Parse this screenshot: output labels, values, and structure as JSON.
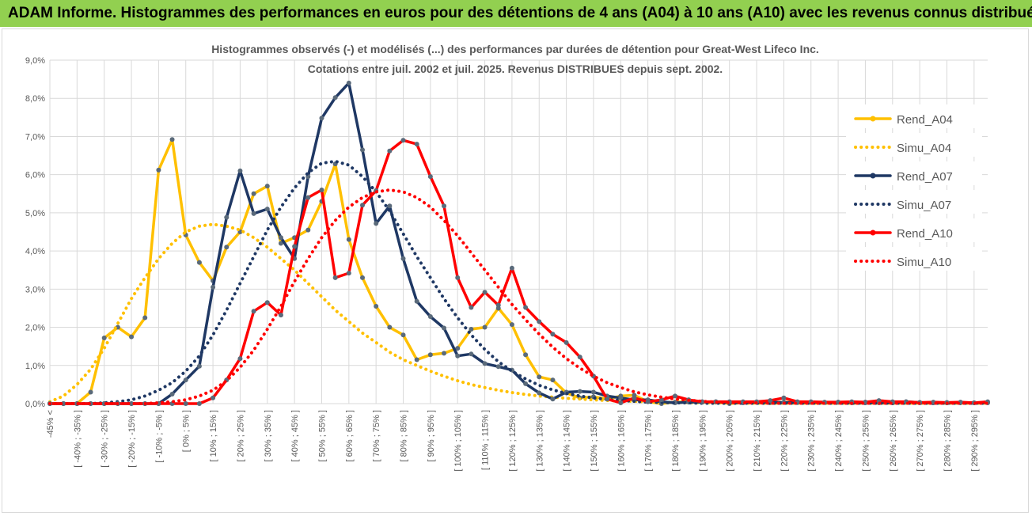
{
  "banner": {
    "title": "ADAM Informe. Histogrammes des performances en euros pour des détentions de 4 ans (A04) à 10 ans (A10) avec les revenus connus distribués"
  },
  "colors": {
    "banner": "#92d050",
    "A04": "#ffc000",
    "A07": "#1f3864",
    "A10": "#ff0000",
    "grid": "#d9d9d9",
    "markers": "#5a6a7a"
  },
  "chart_data": {
    "type": "line",
    "title": "Histogrammes observés (-) et modélisés (...) des performances par durées de détention pour Great-West Lifeco Inc.",
    "subtitle": "Cotations entre juil. 2002 et juil. 2025. Revenus DISTRIBUES depuis sept. 2002.",
    "xlabel": "",
    "ylabel": "",
    "ylim": [
      0,
      9
    ],
    "yticks": [
      "0,0%",
      "1,0%",
      "2,0%",
      "3,0%",
      "4,0%",
      "5,0%",
      "6,0%",
      "7,0%",
      "8,0%",
      "9,0%"
    ],
    "grid": true,
    "legend_position": "right",
    "x_tick_labels": [
      "-45% <",
      "[ -40% ; -35% ]",
      "[ -30% ; -25% ]",
      "[ -20% ; -15% ]",
      "[ -10% ; -5% ]",
      "[ 0% ; 5% ]",
      "[ 10% ; 15% ]",
      "[ 20% ; 25% ]",
      "[ 30% ; 35% ]",
      "[ 40% ; 45% ]",
      "[ 50% ; 55% ]",
      "[ 60% ; 65% ]",
      "[ 70% ; 75% ]",
      "[ 80% ; 85% ]",
      "[ 90% ; 95% ]",
      "[ 100% ; 105% ]",
      "[ 110% ; 115% ]",
      "[ 120% ; 125% ]",
      "[ 130% ; 135% ]",
      "[ 140% ; 145% ]",
      "[ 150% ; 155% ]",
      "[ 160% ; 165% ]",
      "[ 170% ; 175% ]",
      "[ 180% ; 185% ]",
      "[ 190% ; 195% ]",
      "[ 200% ; 205% ]",
      "[ 210% ; 215% ]",
      "[ 220% ; 225% ]",
      "[ 230% ; 235% ]",
      "[ 240% ; 245% ]",
      "[ 250% ; 255% ]",
      "[ 260% ; 265% ]",
      "[ 270% ; 275% ]",
      "[ 280% ; 285% ]",
      "[ 290% ; 295% ]"
    ],
    "categories_count": 70,
    "series": [
      {
        "name": "Rend_A04",
        "style": "solid",
        "color": "#ffc000",
        "values": [
          0,
          0,
          0,
          0.3,
          1.72,
          2.0,
          1.75,
          2.25,
          6.12,
          6.92,
          4.42,
          3.7,
          3.22,
          4.1,
          4.5,
          5.5,
          5.7,
          4.2,
          4.35,
          4.55,
          5.3,
          6.28,
          4.3,
          3.3,
          2.55,
          2.0,
          1.8,
          1.15,
          1.28,
          1.32,
          1.45,
          1.95,
          2.0,
          2.5,
          2.07,
          1.28,
          0.7,
          0.62,
          0.28,
          0.15,
          0.18,
          0.12,
          0.2,
          0.22,
          0.05,
          0,
          0.04,
          0.05,
          0.05,
          0.04,
          0,
          0.03,
          0.03,
          0.02,
          0.04,
          0.03,
          0.03,
          0.03,
          0.03,
          0.02,
          0.04,
          0.02,
          0.02,
          0.03,
          0.02,
          0.02,
          0.02,
          0.02,
          0.02,
          0.02
        ]
      },
      {
        "name": "Simu_A04",
        "style": "dotted",
        "color": "#ffc000",
        "values": [
          0.05,
          0.2,
          0.5,
          0.9,
          1.45,
          2.1,
          2.75,
          3.3,
          3.8,
          4.2,
          4.5,
          4.65,
          4.7,
          4.65,
          4.55,
          4.35,
          4.1,
          3.8,
          3.5,
          3.15,
          2.8,
          2.45,
          2.15,
          1.85,
          1.6,
          1.35,
          1.15,
          1.0,
          0.85,
          0.72,
          0.6,
          0.5,
          0.42,
          0.35,
          0.29,
          0.24,
          0.2,
          0.17,
          0.14,
          0.12,
          0.1,
          0.08,
          0.07,
          0.06,
          0.05,
          0.04,
          0.03,
          0.03,
          0.02,
          0.02,
          0.02,
          0.01,
          0.01,
          0.01,
          0.01,
          0.01,
          0.01,
          0.01,
          0.01,
          0.01,
          0.01,
          0.01,
          0.01,
          0.01,
          0.01,
          0.01,
          0.01,
          0.01,
          0.01,
          0.01
        ]
      },
      {
        "name": "Rend_A07",
        "style": "solid",
        "color": "#1f3864",
        "values": [
          0,
          0,
          0,
          0,
          0,
          0,
          0,
          0,
          0,
          0.25,
          0.62,
          0.98,
          3.05,
          4.88,
          6.1,
          4.98,
          5.1,
          4.35,
          3.8,
          5.95,
          7.48,
          8.02,
          8.4,
          6.65,
          4.72,
          5.18,
          3.8,
          2.68,
          2.28,
          1.98,
          1.25,
          1.3,
          1.05,
          0.97,
          0.88,
          0.52,
          0.28,
          0.12,
          0.3,
          0.32,
          0.3,
          0.2,
          0.15,
          0.1,
          0.1,
          0.05,
          0.02,
          0.04,
          0.04,
          0.05,
          0.03,
          0.02,
          0.04,
          0.04,
          0.03,
          0.03,
          0.04,
          0.03,
          0.04,
          0.03,
          0.02,
          0.03,
          0.02,
          0.05,
          0.03,
          0.02,
          0.02,
          0.03,
          0.02,
          0.03
        ]
      },
      {
        "name": "Simu_A07",
        "style": "dotted",
        "color": "#1f3864",
        "values": [
          0,
          0,
          0,
          0,
          0.02,
          0.05,
          0.1,
          0.2,
          0.35,
          0.55,
          0.85,
          1.25,
          1.8,
          2.45,
          3.15,
          3.85,
          4.55,
          5.15,
          5.65,
          6.05,
          6.3,
          6.35,
          6.25,
          5.95,
          5.55,
          5.05,
          4.45,
          3.85,
          3.3,
          2.75,
          2.25,
          1.8,
          1.42,
          1.1,
          0.85,
          0.65,
          0.48,
          0.36,
          0.27,
          0.2,
          0.15,
          0.11,
          0.08,
          0.06,
          0.04,
          0.03,
          0.02,
          0.02,
          0.01,
          0.01,
          0.01,
          0.01,
          0.01,
          0.01,
          0.01,
          0.01,
          0.01,
          0.01,
          0.01,
          0.01,
          0.01,
          0.01,
          0.01,
          0.01,
          0.01,
          0.01,
          0.01,
          0.01,
          0.01,
          0.01
        ]
      },
      {
        "name": "Rend_A10",
        "style": "solid",
        "color": "#ff0000",
        "values": [
          0,
          0,
          0,
          0,
          0,
          0,
          0,
          0,
          0,
          0,
          0,
          0,
          0.15,
          0.62,
          1.18,
          2.42,
          2.65,
          2.32,
          4.12,
          5.4,
          5.6,
          3.3,
          3.42,
          5.2,
          5.58,
          6.62,
          6.9,
          6.8,
          5.95,
          5.18,
          3.3,
          2.52,
          2.92,
          2.58,
          3.55,
          2.52,
          2.15,
          1.82,
          1.6,
          1.22,
          0.72,
          0.12,
          0.02,
          0.15,
          0.05,
          0.1,
          0.2,
          0.1,
          0.05,
          0.05,
          0.05,
          0.05,
          0.05,
          0.08,
          0.15,
          0.05,
          0.05,
          0.04,
          0.04,
          0.05,
          0.04,
          0.08,
          0.05,
          0.05,
          0.03,
          0.04,
          0.03,
          0.04,
          0.02,
          0.05
        ]
      },
      {
        "name": "Simu_A10",
        "style": "dotted",
        "color": "#ff0000",
        "values": [
          0,
          0,
          0,
          0,
          0,
          0,
          0,
          0,
          0.02,
          0.05,
          0.1,
          0.2,
          0.35,
          0.6,
          0.95,
          1.4,
          1.95,
          2.55,
          3.2,
          3.8,
          4.35,
          4.8,
          5.15,
          5.4,
          5.55,
          5.6,
          5.55,
          5.4,
          5.15,
          4.8,
          4.4,
          3.95,
          3.5,
          3.05,
          2.6,
          2.2,
          1.82,
          1.48,
          1.18,
          0.93,
          0.72,
          0.55,
          0.42,
          0.31,
          0.23,
          0.17,
          0.12,
          0.09,
          0.06,
          0.04,
          0.03,
          0.02,
          0.02,
          0.01,
          0.01,
          0.01,
          0.01,
          0.01,
          0.01,
          0.01,
          0.01,
          0.01,
          0.01,
          0.01,
          0.01,
          0.01,
          0.01,
          0.01,
          0.01,
          0.01
        ]
      }
    ]
  }
}
